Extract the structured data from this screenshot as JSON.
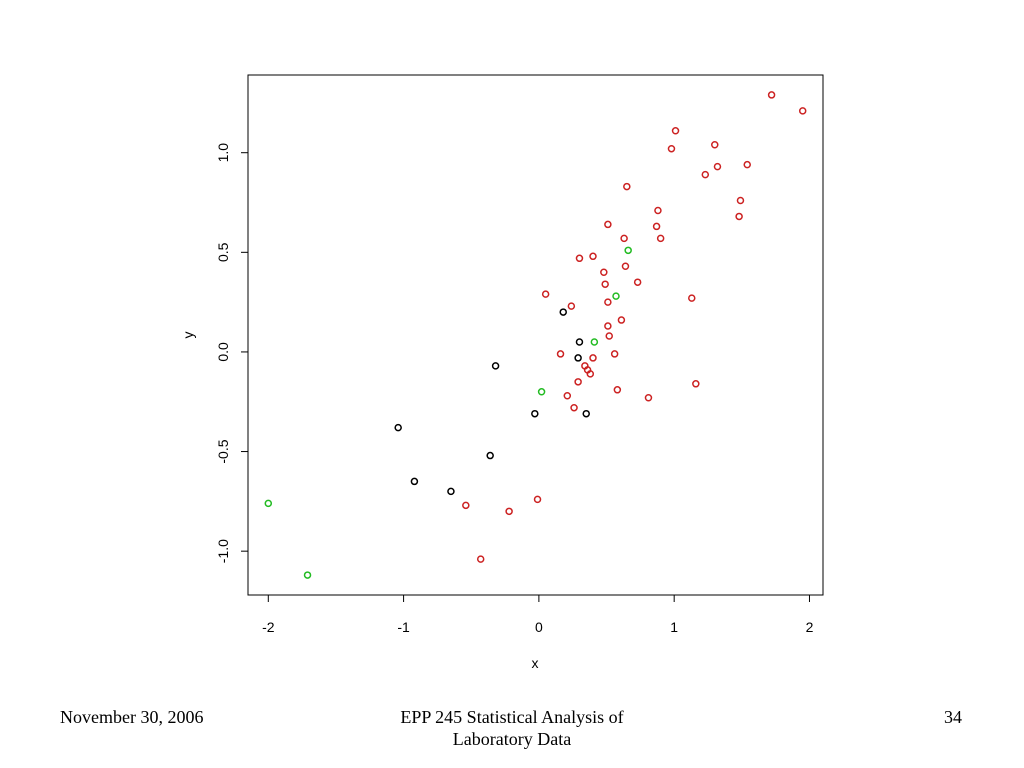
{
  "chart_data": {
    "type": "scatter",
    "title": "",
    "xlabel": "x",
    "ylabel": "y",
    "xlim": [
      -2.15,
      2.1
    ],
    "ylim": [
      -1.22,
      1.39
    ],
    "x_ticks": [
      -2,
      -1,
      0,
      1,
      2
    ],
    "x_tick_labels": [
      "-2",
      "-1",
      "0",
      "1",
      "2"
    ],
    "y_ticks": [
      -1.0,
      -0.5,
      0.0,
      0.5,
      1.0
    ],
    "y_tick_labels": [
      "-1.0",
      "-0.5",
      "0.0",
      "0.5",
      "1.0"
    ],
    "grid": false,
    "legend": "none",
    "marker": "open-circle",
    "series": [
      {
        "color": "#cc2222",
        "points": [
          [
            1.72,
            1.29
          ],
          [
            1.95,
            1.21
          ],
          [
            1.01,
            1.11
          ],
          [
            0.98,
            1.02
          ],
          [
            1.3,
            1.04
          ],
          [
            1.32,
            0.93
          ],
          [
            1.54,
            0.94
          ],
          [
            1.23,
            0.89
          ],
          [
            0.65,
            0.83
          ],
          [
            1.49,
            0.76
          ],
          [
            0.88,
            0.71
          ],
          [
            1.48,
            0.68
          ],
          [
            0.51,
            0.64
          ],
          [
            0.87,
            0.63
          ],
          [
            0.63,
            0.57
          ],
          [
            0.9,
            0.57
          ],
          [
            0.4,
            0.48
          ],
          [
            0.3,
            0.47
          ],
          [
            0.64,
            0.43
          ],
          [
            0.48,
            0.4
          ],
          [
            0.73,
            0.35
          ],
          [
            0.49,
            0.34
          ],
          [
            0.05,
            0.29
          ],
          [
            1.13,
            0.27
          ],
          [
            0.51,
            0.25
          ],
          [
            0.24,
            0.23
          ],
          [
            0.61,
            0.16
          ],
          [
            0.51,
            0.13
          ],
          [
            0.52,
            0.08
          ],
          [
            0.16,
            -0.01
          ],
          [
            0.56,
            -0.01
          ],
          [
            0.4,
            -0.03
          ],
          [
            0.34,
            -0.07
          ],
          [
            0.36,
            -0.09
          ],
          [
            0.38,
            -0.11
          ],
          [
            0.29,
            -0.15
          ],
          [
            1.16,
            -0.16
          ],
          [
            0.58,
            -0.19
          ],
          [
            0.21,
            -0.22
          ],
          [
            0.81,
            -0.23
          ],
          [
            0.26,
            -0.28
          ],
          [
            -0.01,
            -0.74
          ],
          [
            -0.54,
            -0.77
          ],
          [
            -0.22,
            -0.8
          ],
          [
            -0.43,
            -1.04
          ]
        ]
      },
      {
        "color": "#000000",
        "points": [
          [
            0.18,
            0.2
          ],
          [
            0.3,
            0.05
          ],
          [
            0.29,
            -0.03
          ],
          [
            -0.32,
            -0.07
          ],
          [
            -0.03,
            -0.31
          ],
          [
            0.35,
            -0.31
          ],
          [
            -1.04,
            -0.38
          ],
          [
            -0.36,
            -0.52
          ],
          [
            -0.92,
            -0.65
          ],
          [
            -0.65,
            -0.7
          ]
        ]
      },
      {
        "color": "#22bb22",
        "points": [
          [
            0.66,
            0.51
          ],
          [
            0.57,
            0.28
          ],
          [
            0.41,
            0.05
          ],
          [
            0.02,
            -0.2
          ],
          [
            -2.0,
            -0.76
          ],
          [
            -1.71,
            -1.12
          ]
        ]
      }
    ]
  },
  "footer": {
    "date": "November 30, 2006",
    "course_line1": "EPP 245 Statistical Analysis of",
    "course_line2": "Laboratory Data",
    "page_number": "34"
  }
}
